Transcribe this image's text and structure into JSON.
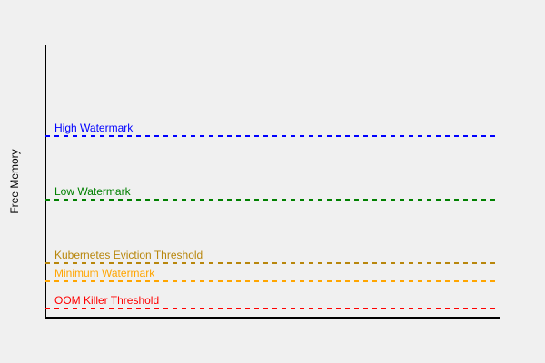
{
  "diagram": {
    "y_axis_label": "Free Memory",
    "thresholds": [
      {
        "label": "High Watermark",
        "color": "#0000ff"
      },
      {
        "label": "Low Watermark",
        "color": "#008000"
      },
      {
        "label": "Kubernetes Eviction Threshold",
        "color": "#b8860b"
      },
      {
        "label": "Minimum Watermark",
        "color": "#ffa500"
      },
      {
        "label": "OOM Killer Threshold",
        "color": "#ff0000"
      }
    ]
  }
}
